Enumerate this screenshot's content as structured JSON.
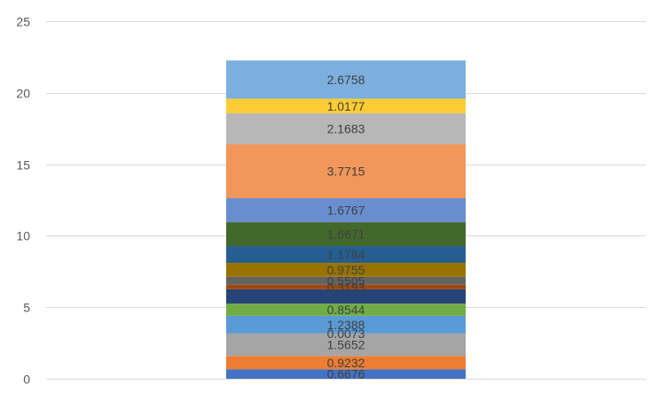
{
  "chart_data": {
    "type": "bar",
    "stacked": true,
    "categories": [
      ""
    ],
    "ylim": [
      0,
      25
    ],
    "yticks": [
      0,
      5,
      10,
      15,
      20,
      25
    ],
    "grid": true,
    "legend": "none",
    "series": [
      {
        "values": [
          0.6676
        ],
        "label": "0.6676",
        "color": "#4472C4"
      },
      {
        "values": [
          0.9232
        ],
        "label": "0.9232",
        "color": "#ED7D31"
      },
      {
        "values": [
          1.5652
        ],
        "label": "1.5652",
        "color": "#A5A5A5"
      },
      {
        "values": [
          0.0073
        ],
        "label": "0.0073",
        "color": "#FFC000"
      },
      {
        "values": [
          1.2388
        ],
        "label": "1.2388",
        "color": "#5B9BD5"
      },
      {
        "values": [
          0.8544
        ],
        "label": "0.8544",
        "color": "#70AD47"
      },
      {
        "values": [
          1.0
        ],
        "label": "",
        "color": "#264478"
      },
      {
        "values": [
          0.3193
        ],
        "label": "0.3193",
        "color": "#9E480E"
      },
      {
        "values": [
          0.5505
        ],
        "label": "0.5505",
        "color": "#636363"
      },
      {
        "values": [
          0.9755
        ],
        "label": "0.9755",
        "color": "#997300"
      },
      {
        "values": [
          1.1784
        ],
        "label": "1.1784",
        "color": "#255E91"
      },
      {
        "values": [
          1.6671
        ],
        "label": "1.6671",
        "color": "#43682B"
      },
      {
        "values": [
          1.6767
        ],
        "label": "1.6767",
        "color": "#698ED0"
      },
      {
        "values": [
          3.7715
        ],
        "label": "3.7715",
        "color": "#F1975A"
      },
      {
        "values": [
          2.1683
        ],
        "label": "2.1683",
        "color": "#B7B7B7"
      },
      {
        "values": [
          1.0177
        ],
        "label": "1.0177",
        "color": "#FFCD33"
      },
      {
        "values": [
          2.6758
        ],
        "label": "2.6758",
        "color": "#7CAFDD"
      }
    ]
  }
}
